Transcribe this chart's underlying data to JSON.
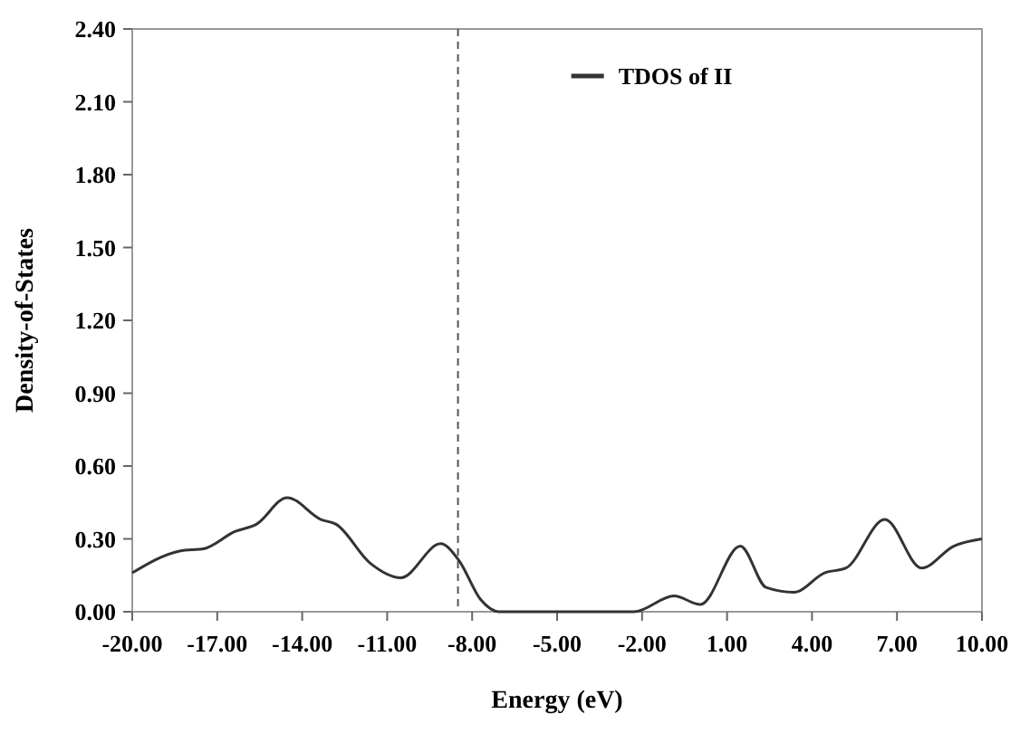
{
  "chart_data": {
    "type": "line",
    "xlabel": "Energy (eV)",
    "ylabel": "Density-of-States",
    "x": [
      -20,
      -18.33,
      -17.46,
      -16.38,
      -15.62,
      -14.53,
      -13.34,
      -12.8,
      -11.6,
      -10.52,
      -9.11,
      -8.46,
      -7.7,
      -7.05,
      -2.28,
      -0.87,
      0.06,
      1.47,
      2.38,
      3.36,
      4.44,
      5.2,
      6.57,
      7.87,
      9.0,
      10
    ],
    "series": [
      {
        "name": "TDOS of II",
        "color": "#333333",
        "values": [
          0.16,
          0.25,
          0.26,
          0.33,
          0.36,
          0.47,
          0.38,
          0.36,
          0.2,
          0.14,
          0.28,
          0.21,
          0.05,
          0,
          0,
          0.065,
          0.03,
          0.27,
          0.1,
          0.08,
          0.16,
          0.18,
          0.38,
          0.18,
          0.27,
          0.3
        ]
      }
    ],
    "xlim": [
      -20,
      10
    ],
    "ylim": [
      0,
      2.4
    ],
    "xticks": [
      {
        "value": -20,
        "label": "-20.00"
      },
      {
        "value": -17,
        "label": "-17.00"
      },
      {
        "value": -14,
        "label": "-14.00"
      },
      {
        "value": -11,
        "label": "-11.00"
      },
      {
        "value": -8,
        "label": "-8.00"
      },
      {
        "value": -5,
        "label": "-5.00"
      },
      {
        "value": -2,
        "label": "-2.00"
      },
      {
        "value": 1,
        "label": "1.00"
      },
      {
        "value": 4,
        "label": "4.00"
      },
      {
        "value": 7,
        "label": "7.00"
      },
      {
        "value": 10,
        "label": "10.00"
      }
    ],
    "yticks": [
      {
        "value": 0,
        "label": "0.00"
      },
      {
        "value": 0.3,
        "label": "0.30"
      },
      {
        "value": 0.6,
        "label": "0.60"
      },
      {
        "value": 0.9,
        "label": "0.90"
      },
      {
        "value": 1.2,
        "label": "1.20"
      },
      {
        "value": 1.5,
        "label": "1.50"
      },
      {
        "value": 1.8,
        "label": "1.80"
      },
      {
        "value": 2.1,
        "label": "2.10"
      },
      {
        "value": 2.4,
        "label": "2.40"
      }
    ],
    "ref_lines": [
      {
        "axis": "x",
        "value": -8.5,
        "line_style": "dashed",
        "color": "#555555"
      }
    ],
    "legend": "top",
    "grid": false,
    "marker": "none",
    "line_style": "solid"
  }
}
